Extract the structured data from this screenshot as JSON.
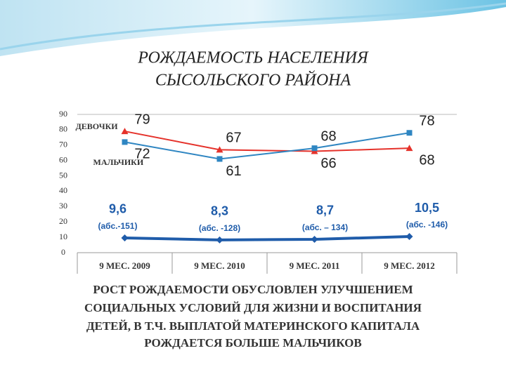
{
  "chart_data": {
    "type": "line",
    "title": [
      "РОЖДАЕМОСТЬ НАСЕЛЕНИЯ",
      "СЫСОЛЬСКОГО РАЙОНА"
    ],
    "categories": [
      "9 МЕС. 2009",
      "9 МЕС. 2010",
      "9 МЕС. 2011",
      "9 МЕС. 2012"
    ],
    "series": [
      {
        "name": "ДЕВОЧКИ",
        "color": "#e5322b",
        "marker": "triangle",
        "values": [
          79,
          67,
          66,
          68
        ]
      },
      {
        "name": "МАЛЬЧИКИ",
        "color": "#2f86c2",
        "marker": "square",
        "values": [
          72,
          61,
          68,
          78
        ]
      },
      {
        "color": "#1f5caa",
        "marker": "diamond",
        "values": [
          9.6,
          8.3,
          8.7,
          10.5
        ],
        "value_labels": [
          "9,6",
          "8,3",
          "8,7",
          "10,5"
        ],
        "annotations": [
          "(абс.-151)",
          "(абс. -128)",
          "(абс. – 134)",
          "(абс. -146)"
        ]
      }
    ],
    "ylim": [
      0,
      90
    ],
    "yticks": [
      0,
      10,
      20,
      30,
      40,
      50,
      60,
      70,
      80,
      90
    ],
    "grid": false,
    "footer": [
      "РОСТ РОЖДАЕМОСТИ ОБУСЛОВЛЕН УЛУЧШЕНИЕМ",
      "СОЦИАЛЬНЫХ УСЛОВИЙ ДЛЯ ЖИЗНИ И ВОСПИТАНИЯ",
      "ДЕТЕЙ, В Т.Ч. ВЫПЛАТОЙ МАТЕРИНСКОГО КАПИТАЛА",
      "РОЖДАЕТСЯ БОЛЬШЕ МАЛЬЧИКОВ"
    ]
  }
}
